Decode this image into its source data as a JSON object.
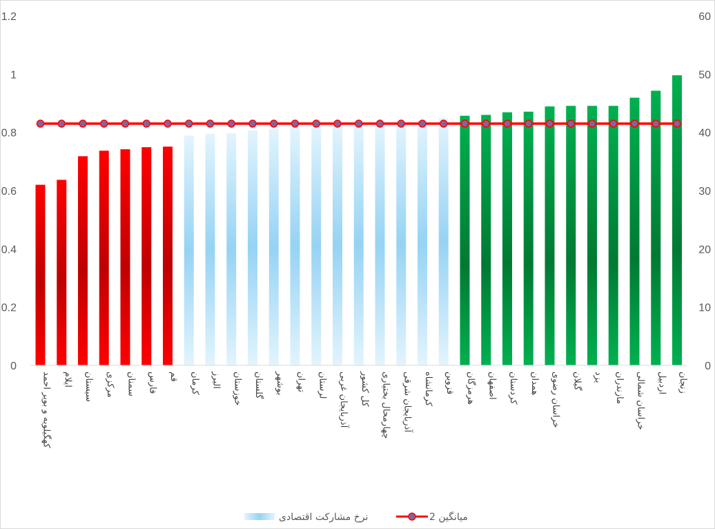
{
  "chart_data": {
    "type": "bar",
    "categories": [
      "کهگیلویه و بویر احمد",
      "ایلام",
      "سیستان",
      "مرکزی",
      "سمنان",
      "فارس",
      "قم",
      "کرمان",
      "البرز",
      "خوزستان",
      "گلستان",
      "بوشهر",
      "تهران",
      "لرستان",
      "آذربایجان غربی",
      "کل کشور",
      "چهارمحال بختیاری",
      "آذربایجان شرقی",
      "کرمانشاه",
      "قزوین",
      "هرمزگان",
      "اصفهان",
      "کردستان",
      "همدان",
      "خراسان رضوی",
      "گیلان",
      "یزد",
      "مازندران",
      "خراسان شمالی",
      "اردبیل",
      "زنجان"
    ],
    "series": [
      {
        "name": "نرخ مشارکت اقتصادی",
        "axis": "left",
        "values": [
          0.62,
          0.637,
          0.718,
          0.737,
          0.742,
          0.749,
          0.751,
          0.789,
          0.795,
          0.797,
          0.807,
          0.812,
          0.817,
          0.822,
          0.826,
          0.829,
          0.832,
          0.834,
          0.839,
          0.849,
          0.857,
          0.86,
          0.869,
          0.871,
          0.889,
          0.891,
          0.891,
          0.891,
          0.919,
          0.943,
          0.996
        ],
        "colors": [
          "#ff0000",
          "#ff0000",
          "#ff0000",
          "#ff0000",
          "#ff0000",
          "#ff0000",
          "#ff0000",
          "#9fd9f6",
          "#9fd9f6",
          "#9fd9f6",
          "#9fd9f6",
          "#9fd9f6",
          "#9fd9f6",
          "#9fd9f6",
          "#9fd9f6",
          "#9fd9f6",
          "#9fd9f6",
          "#9fd9f6",
          "#9fd9f6",
          "#9fd9f6",
          "#00b050",
          "#00b050",
          "#00b050",
          "#00b050",
          "#00b050",
          "#00b050",
          "#00b050",
          "#00b050",
          "#00b050",
          "#00b050",
          "#00b050"
        ]
      },
      {
        "name": "میانگین 2",
        "axis": "right",
        "values": [
          41.5,
          41.5,
          41.5,
          41.5,
          41.5,
          41.5,
          41.5,
          41.5,
          41.5,
          41.5,
          41.5,
          41.5,
          41.5,
          41.5,
          41.5,
          41.5,
          41.5,
          41.5,
          41.5,
          41.5,
          41.5,
          41.5,
          41.5,
          41.5,
          41.5,
          41.5,
          41.5,
          41.5,
          41.5,
          41.5,
          41.5
        ],
        "line_color": "#ff0000",
        "marker_color": "#8064a2"
      }
    ],
    "y_left": {
      "min": 0,
      "max": 1.2,
      "ticks": [
        "0",
        "0.2",
        "0.4",
        "0.6",
        "0.8",
        "1",
        "1.2"
      ]
    },
    "y_right": {
      "min": 0,
      "max": 60,
      "ticks": [
        "0",
        "10",
        "20",
        "30",
        "40",
        "50",
        "60"
      ]
    },
    "grid": false,
    "legend_position": "bottom"
  }
}
